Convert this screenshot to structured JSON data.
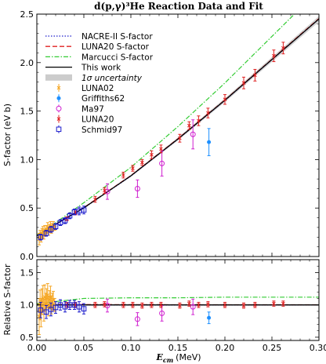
{
  "chart_data": {
    "type": "scatter",
    "title": "d(p,γ)³He Reaction Data and Fit",
    "xlabel": "E_cm (MeV)",
    "xlabel_main": "E",
    "xlabel_sub": "cm",
    "xlabel_unit": "(MeV)",
    "xlim": [
      0.0,
      0.3
    ],
    "x_ticks": [
      0.0,
      0.05,
      0.1,
      0.15,
      0.2,
      0.25,
      0.3
    ],
    "x_tick_labels": [
      "0.00",
      "0.05",
      "0.10",
      "0.15",
      "0.20",
      "0.25",
      "0.30"
    ],
    "grid": false,
    "legend_position": "top-left",
    "panels": [
      {
        "ylabel": "S-factor (eV b)",
        "ylim": [
          0.0,
          2.5
        ],
        "y_ticks": [
          0.0,
          0.5,
          1.0,
          1.5,
          2.0,
          2.5
        ],
        "y_tick_labels": [
          "0.0",
          "0.5",
          "1.0",
          "1.5",
          "2.0",
          "2.5"
        ]
      },
      {
        "ylabel": "Relative S-factor",
        "ylim": [
          0.45,
          1.7
        ],
        "y_ticks": [
          0.5,
          1.0,
          1.5
        ],
        "y_tick_labels": [
          "0.5",
          "1.0",
          "1.5"
        ]
      }
    ],
    "curves": [
      {
        "name": "NACRE-II S-factor",
        "color": "#1f1fcc",
        "style": "dotted",
        "x": [
          0,
          0.02,
          0.05,
          0.1,
          0.15,
          0.2,
          0.25,
          0.3
        ],
        "y": [
          0.215,
          0.33,
          0.5,
          0.83,
          1.21,
          1.61,
          2.03,
          2.45
        ]
      },
      {
        "name": "LUNA20 S-factor",
        "color": "#e02020",
        "style": "dashed",
        "x": [
          0,
          0.02,
          0.05,
          0.1,
          0.15,
          0.2,
          0.25,
          0.3
        ],
        "y": [
          0.216,
          0.335,
          0.505,
          0.835,
          1.215,
          1.615,
          2.035,
          2.455
        ]
      },
      {
        "name": "Marcucci S-factor",
        "color": "#33cc33",
        "style": "dashdot",
        "x": [
          0,
          0.02,
          0.05,
          0.1,
          0.15,
          0.2,
          0.25,
          0.3
        ],
        "y": [
          0.22,
          0.35,
          0.555,
          0.92,
          1.34,
          1.79,
          2.27,
          2.75
        ]
      },
      {
        "name": "This work",
        "color": "#000000",
        "style": "solid",
        "x": [
          0,
          0.02,
          0.05,
          0.1,
          0.15,
          0.2,
          0.25,
          0.3
        ],
        "y": [
          0.215,
          0.333,
          0.502,
          0.832,
          1.212,
          1.612,
          2.032,
          2.45
        ]
      }
    ],
    "band": {
      "name": "1σ uncertainty",
      "color": "#cccccc"
    },
    "series": [
      {
        "name": "LUNA02",
        "color": "#f5a623",
        "marker": "x",
        "x": [
          0.0025,
          0.0035,
          0.0045,
          0.0055,
          0.0065,
          0.0075,
          0.0085,
          0.0095,
          0.0105,
          0.0115,
          0.0125,
          0.0135,
          0.0145,
          0.0155,
          0.0165,
          0.0175,
          0.019
        ],
        "y": [
          0.18,
          0.22,
          0.2,
          0.24,
          0.26,
          0.22,
          0.27,
          0.25,
          0.28,
          0.3,
          0.26,
          0.29,
          0.31,
          0.28,
          0.3,
          0.32,
          0.3
        ],
        "err": [
          0.06,
          0.05,
          0.05,
          0.05,
          0.05,
          0.04,
          0.05,
          0.04,
          0.04,
          0.05,
          0.04,
          0.04,
          0.05,
          0.04,
          0.04,
          0.04,
          0.03
        ]
      },
      {
        "name": "Griffiths62",
        "color": "#1e90ff",
        "marker": "o",
        "x": [
          0.183
        ],
        "y": [
          1.18
        ],
        "err": [
          0.14
        ]
      },
      {
        "name": "Ma97",
        "color": "#d020d0",
        "marker": "o-open",
        "x": [
          0.075,
          0.107,
          0.133,
          0.166
        ],
        "y": [
          0.67,
          0.7,
          0.96,
          1.26
        ],
        "err": [
          0.08,
          0.09,
          0.13,
          0.15
        ]
      },
      {
        "name": "LUNA20",
        "color": "#e02020",
        "marker": "x",
        "x": [
          0.032,
          0.041,
          0.062,
          0.072,
          0.092,
          0.102,
          0.112,
          0.122,
          0.132,
          0.152,
          0.162,
          0.172,
          0.182,
          0.2,
          0.22,
          0.232,
          0.252,
          0.262
        ],
        "y": [
          0.39,
          0.45,
          0.59,
          0.68,
          0.84,
          0.91,
          0.97,
          1.05,
          1.11,
          1.22,
          1.35,
          1.4,
          1.48,
          1.62,
          1.79,
          1.87,
          2.07,
          2.15
        ],
        "err": [
          0.02,
          0.02,
          0.03,
          0.03,
          0.03,
          0.03,
          0.03,
          0.04,
          0.04,
          0.04,
          0.04,
          0.05,
          0.05,
          0.05,
          0.06,
          0.06,
          0.06,
          0.06
        ]
      },
      {
        "name": "Schmid97",
        "color": "#1a1acc",
        "marker": "s-open",
        "x": [
          0.004,
          0.01,
          0.015,
          0.02,
          0.025,
          0.03,
          0.035,
          0.04,
          0.045,
          0.05
        ],
        "y": [
          0.2,
          0.24,
          0.28,
          0.31,
          0.35,
          0.37,
          0.42,
          0.46,
          0.47,
          0.48
        ],
        "err": [
          0.03,
          0.03,
          0.03,
          0.03,
          0.03,
          0.03,
          0.03,
          0.03,
          0.04,
          0.04
        ]
      }
    ],
    "relative": {
      "reference_line": 1.0,
      "curves": [
        {
          "name": "NACRE-II S-factor",
          "x": [
            0,
            0.05,
            0.1,
            0.15,
            0.2,
            0.25,
            0.3
          ],
          "y": [
            1.0,
            1.0,
            0.998,
            0.998,
            0.999,
            0.999,
            1.0
          ]
        },
        {
          "name": "LUNA20 S-factor",
          "x": [
            0,
            0.05,
            0.1,
            0.15,
            0.2,
            0.25,
            0.3
          ],
          "y": [
            1.005,
            1.006,
            1.004,
            1.003,
            1.002,
            1.002,
            1.002
          ]
        },
        {
          "name": "Marcucci S-factor",
          "x": [
            0,
            0.05,
            0.1,
            0.15,
            0.2,
            0.25,
            0.3
          ],
          "y": [
            1.02,
            1.1,
            1.11,
            1.11,
            1.12,
            1.12,
            1.12
          ]
        },
        {
          "name": "This work",
          "x": [
            0,
            0.3
          ],
          "y": [
            1.0,
            1.0
          ]
        }
      ],
      "series": [
        {
          "name": "LUNA02",
          "x": [
            0.0025,
            0.0035,
            0.0045,
            0.0055,
            0.0065,
            0.0075,
            0.0085,
            0.0095,
            0.0105,
            0.0115,
            0.0125,
            0.0135,
            0.0145,
            0.0155,
            0.0165,
            0.0175,
            0.019
          ],
          "y": [
            0.82,
            1.0,
            0.88,
            1.05,
            1.1,
            0.92,
            1.12,
            1.02,
            1.1,
            1.15,
            0.98,
            1.08,
            1.12,
            1.0,
            1.05,
            1.08,
            1.0
          ],
          "err": [
            0.28,
            0.23,
            0.22,
            0.2,
            0.2,
            0.17,
            0.19,
            0.16,
            0.15,
            0.18,
            0.15,
            0.14,
            0.17,
            0.14,
            0.13,
            0.13,
            0.1
          ]
        },
        {
          "name": "Griffiths62",
          "x": [
            0.183
          ],
          "y": [
            0.8
          ],
          "err": [
            0.09
          ]
        },
        {
          "name": "Ma97",
          "x": [
            0.075,
            0.107,
            0.133,
            0.166
          ],
          "y": [
            0.99,
            0.78,
            0.87,
            0.97
          ],
          "err": [
            0.1,
            0.1,
            0.12,
            0.12
          ]
        },
        {
          "name": "LUNA20",
          "x": [
            0.032,
            0.041,
            0.062,
            0.072,
            0.092,
            0.102,
            0.112,
            0.122,
            0.132,
            0.152,
            0.162,
            0.172,
            0.182,
            0.2,
            0.22,
            0.232,
            0.252,
            0.262
          ],
          "y": [
            1.0,
            1.0,
            1.0,
            1.01,
            1.0,
            1.0,
            0.99,
            1.0,
            1.0,
            0.99,
            1.02,
            1.0,
            1.01,
            1.0,
            0.99,
            1.0,
            1.02,
            1.02
          ],
          "err": [
            0.04,
            0.04,
            0.04,
            0.04,
            0.04,
            0.04,
            0.04,
            0.04,
            0.04,
            0.04,
            0.04,
            0.04,
            0.04,
            0.04,
            0.04,
            0.04,
            0.04,
            0.04
          ]
        },
        {
          "name": "Schmid97",
          "x": [
            0.004,
            0.01,
            0.015,
            0.02,
            0.025,
            0.03,
            0.035,
            0.04,
            0.045,
            0.05
          ],
          "y": [
            0.92,
            0.89,
            0.93,
            0.96,
            1.0,
            0.97,
            1.0,
            1.0,
            0.97,
            0.94
          ],
          "err": [
            0.12,
            0.1,
            0.1,
            0.09,
            0.08,
            0.08,
            0.07,
            0.07,
            0.08,
            0.08
          ]
        }
      ]
    }
  }
}
